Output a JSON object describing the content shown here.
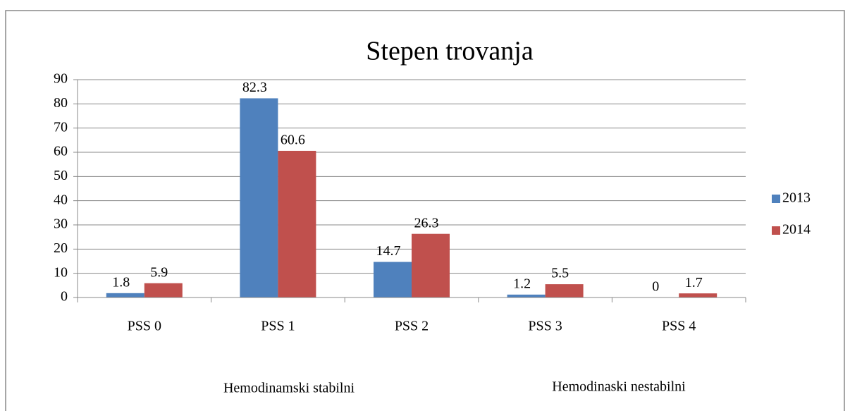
{
  "chart_data": {
    "type": "bar",
    "title": "Stepen trovanja",
    "categories": [
      "PSS 0",
      "PSS 1",
      "PSS 2",
      "PSS 3",
      "PSS 4"
    ],
    "series": [
      {
        "name": "2013",
        "color": "#4f81bd",
        "values": [
          1.8,
          82.3,
          14.7,
          1.2,
          0
        ]
      },
      {
        "name": "2014",
        "color": "#c0504d",
        "values": [
          5.9,
          60.6,
          26.3,
          5.5,
          1.7
        ]
      }
    ],
    "ylim": [
      0,
      90
    ],
    "yticks": [
      0,
      10,
      20,
      30,
      40,
      50,
      60,
      70,
      80,
      90
    ],
    "grid": true,
    "legend": "right",
    "annotations": [
      "Hemodinamski stabilni",
      "Hemodinaski nestabilni"
    ]
  }
}
